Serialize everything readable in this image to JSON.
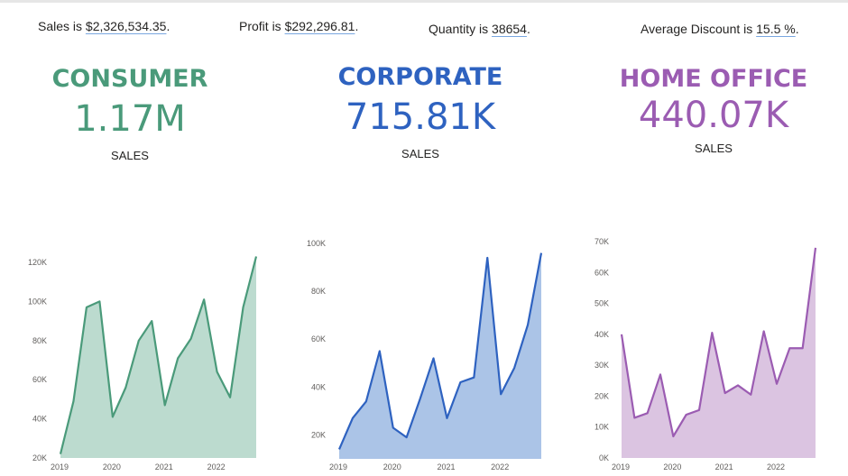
{
  "kpis": [
    {
      "label": "Sales is ",
      "value": "$2,326,534.35",
      "suffix": "."
    },
    {
      "label": "Profit is ",
      "value": "$292,296.81",
      "suffix": "."
    },
    {
      "label": "Quantity is ",
      "value": "38654",
      "suffix": "."
    },
    {
      "label": "Average Discount is ",
      "value": "15.5 %",
      "suffix": "."
    }
  ],
  "segments": [
    {
      "name": "CONSUMER",
      "value": "1.17M",
      "label": "SALES",
      "color": "#4a9a7a"
    },
    {
      "name": "CORPORATE",
      "value": "715.81K",
      "label": "SALES",
      "color": "#2e62c0"
    },
    {
      "name": "HOME OFFICE",
      "value": "440.07K",
      "label": "SALES",
      "color": "#9b5cb2"
    }
  ],
  "chart_data": [
    {
      "type": "area",
      "title": "Consumer Sales",
      "x_ticks": [
        "2019",
        "2020",
        "2021",
        "2022"
      ],
      "y_ticks": [
        "20K",
        "40K",
        "60K",
        "80K",
        "100K",
        "120K"
      ],
      "ylim": [
        20000,
        120000
      ],
      "values": [
        22000,
        49000,
        97000,
        100000,
        41000,
        56000,
        80000,
        90000,
        47000,
        71000,
        81000,
        101000,
        64000,
        51000,
        97000,
        123000
      ],
      "line": "#4a9a7a",
      "fill": "#bcdbcf"
    },
    {
      "type": "area",
      "title": "Corporate Sales",
      "x_ticks": [
        "2019",
        "2020",
        "2021",
        "2022"
      ],
      "y_ticks": [
        "20K",
        "40K",
        "60K",
        "80K",
        "100K"
      ],
      "ylim": [
        10000,
        100000
      ],
      "values": [
        14000,
        27000,
        34000,
        55000,
        23000,
        19000,
        35000,
        52000,
        27000,
        42000,
        44000,
        94000,
        37000,
        48000,
        66000,
        96000
      ],
      "line": "#2e62c0",
      "fill": "#abc4e7"
    },
    {
      "type": "area",
      "title": "Home Office Sales",
      "x_ticks": [
        "2019",
        "2020",
        "2021",
        "2022"
      ],
      "y_ticks": [
        "0K",
        "10K",
        "20K",
        "30K",
        "40K",
        "50K",
        "60K",
        "70K"
      ],
      "ylim": [
        0,
        70000
      ],
      "values": [
        40000,
        13000,
        14500,
        27000,
        7000,
        14000,
        15500,
        40500,
        21000,
        23500,
        20500,
        41000,
        24000,
        35500,
        35500,
        68000
      ],
      "line": "#9b5cb2",
      "fill": "#dbc4e1"
    }
  ]
}
